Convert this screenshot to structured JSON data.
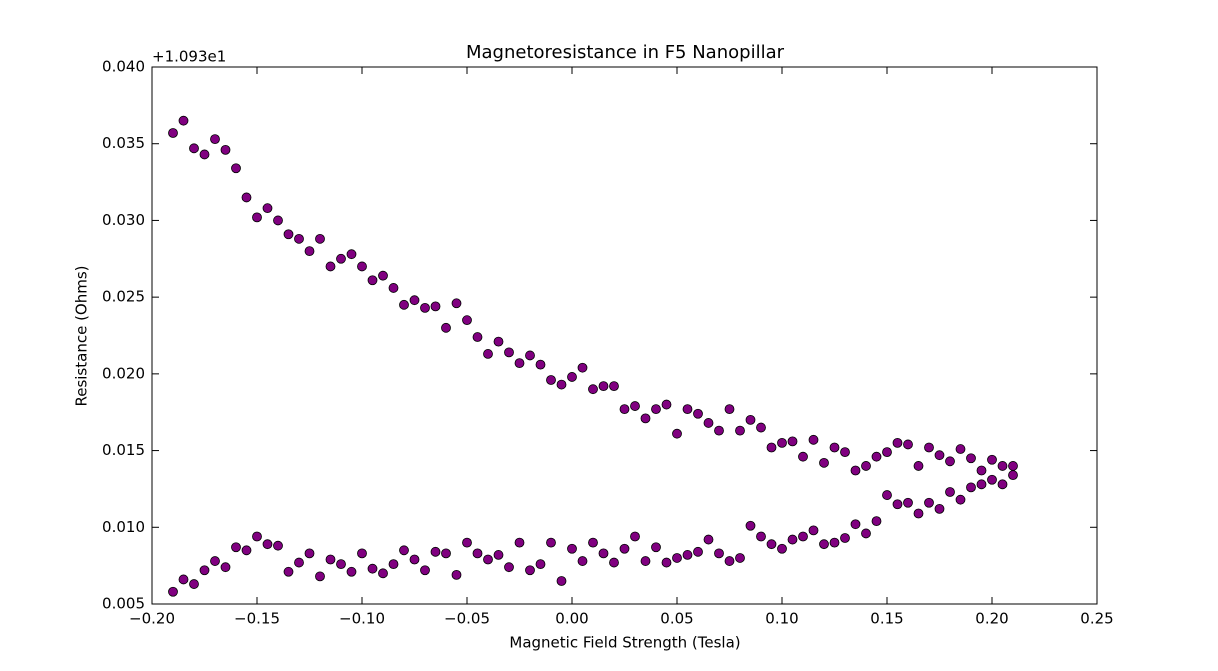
{
  "chart_data": {
    "type": "scatter",
    "title": "Magnetoresistance in F5 Nanopillar",
    "x_label": "Magnetic Field Strength (Tesla)",
    "y_label": "Resistance (Ohms)",
    "y_offset_label": "+1.093e1",
    "color": "#800080",
    "edge_color": "#000000",
    "xlim": [
      -0.2,
      0.25
    ],
    "ylim": [
      0.005,
      0.04
    ],
    "xticks": [
      {
        "value": -0.2,
        "label": "−0.20"
      },
      {
        "value": -0.15,
        "label": "−0.15"
      },
      {
        "value": -0.1,
        "label": "−0.10"
      },
      {
        "value": -0.05,
        "label": "−0.05"
      },
      {
        "value": 0,
        "label": "0.00"
      },
      {
        "value": 0.05,
        "label": "0.05"
      },
      {
        "value": 0.1,
        "label": "0.10"
      },
      {
        "value": 0.15,
        "label": "0.15"
      },
      {
        "value": 0.2,
        "label": "0.20"
      },
      {
        "value": 0.25,
        "label": "0.25"
      }
    ],
    "yticks": [
      {
        "value": 0.005,
        "label": "0.005"
      },
      {
        "value": 0.01,
        "label": "0.010"
      },
      {
        "value": 0.015,
        "label": "0.015"
      },
      {
        "value": 0.02,
        "label": "0.020"
      },
      {
        "value": 0.025,
        "label": "0.025"
      },
      {
        "value": 0.03,
        "label": "0.030"
      },
      {
        "value": 0.035,
        "label": "0.035"
      },
      {
        "value": 0.04,
        "label": "0.040"
      }
    ],
    "x": [
      -0.19,
      -0.185,
      -0.18,
      -0.175,
      -0.17,
      -0.165,
      -0.16,
      -0.155,
      -0.15,
      -0.145,
      -0.14,
      -0.135,
      -0.13,
      -0.125,
      -0.12,
      -0.115,
      -0.11,
      -0.105,
      -0.1,
      -0.095,
      -0.09,
      -0.085,
      -0.08,
      -0.075,
      -0.07,
      -0.065,
      -0.06,
      -0.055,
      -0.05,
      -0.045,
      -0.04,
      -0.035,
      -0.03,
      -0.025,
      -0.02,
      -0.015,
      -0.01,
      -0.005,
      0,
      0.005,
      0.01,
      0.015,
      0.02,
      0.025,
      0.03,
      0.035,
      0.04,
      0.045,
      0.05,
      0.055,
      0.06,
      0.065,
      0.07,
      0.075,
      0.08,
      0.085,
      0.09,
      0.095,
      0.1,
      0.105,
      0.11,
      0.115,
      0.12,
      0.125,
      0.13,
      0.135,
      0.14,
      0.145,
      0.15,
      0.155,
      0.16,
      0.165,
      0.17,
      0.175,
      0.18,
      0.185,
      0.19,
      0.195,
      0.2,
      0.205,
      0.21,
      -0.19,
      -0.185,
      -0.18,
      -0.175,
      -0.17,
      -0.165,
      -0.16,
      -0.155,
      -0.15,
      -0.145,
      -0.14,
      -0.135,
      -0.13,
      -0.125,
      -0.12,
      -0.115,
      -0.11,
      -0.105,
      -0.1,
      -0.095,
      -0.09,
      -0.085,
      -0.08,
      -0.075,
      -0.07,
      -0.065,
      -0.06,
      -0.055,
      -0.05,
      -0.045,
      -0.04,
      -0.035,
      -0.03,
      -0.025,
      -0.02,
      -0.015,
      -0.01,
      -0.005,
      0,
      0.005,
      0.01,
      0.015,
      0.02,
      0.025,
      0.03,
      0.035,
      0.04,
      0.045,
      0.05,
      0.055,
      0.06,
      0.065,
      0.07,
      0.075,
      0.08,
      0.085,
      0.09,
      0.095,
      0.1,
      0.105,
      0.11,
      0.115,
      0.12,
      0.125,
      0.13,
      0.135,
      0.14,
      0.145,
      0.15,
      0.155,
      0.16,
      0.165,
      0.17,
      0.175,
      0.18,
      0.185,
      0.19,
      0.195,
      0.2,
      0.205,
      0.21
    ],
    "y": [
      0.0357,
      0.0365,
      0.0347,
      0.0343,
      0.0353,
      0.0346,
      0.0334,
      0.0315,
      0.0302,
      0.0308,
      0.03,
      0.0291,
      0.0288,
      0.028,
      0.0288,
      0.027,
      0.0275,
      0.0278,
      0.027,
      0.0261,
      0.0264,
      0.0256,
      0.0245,
      0.0248,
      0.0243,
      0.0244,
      0.023,
      0.0246,
      0.0235,
      0.0224,
      0.0213,
      0.0221,
      0.0214,
      0.0207,
      0.0212,
      0.0206,
      0.0196,
      0.0193,
      0.0198,
      0.0204,
      0.019,
      0.0192,
      0.0192,
      0.0177,
      0.0179,
      0.0171,
      0.0177,
      0.018,
      0.0161,
      0.0177,
      0.0174,
      0.0168,
      0.0163,
      0.0177,
      0.0163,
      0.017,
      0.0165,
      0.0152,
      0.0155,
      0.0156,
      0.0146,
      0.0157,
      0.0142,
      0.0152,
      0.0149,
      0.0137,
      0.014,
      0.0146,
      0.0149,
      0.0155,
      0.0154,
      0.014,
      0.0152,
      0.0147,
      0.0143,
      0.0151,
      0.0145,
      0.0137,
      0.0144,
      0.014,
      0.014,
      0.0058,
      0.0066,
      0.0063,
      0.0072,
      0.0078,
      0.0074,
      0.0087,
      0.0085,
      0.0094,
      0.0089,
      0.0088,
      0.0071,
      0.0077,
      0.0083,
      0.0068,
      0.0079,
      0.0076,
      0.0071,
      0.0083,
      0.0073,
      0.007,
      0.0076,
      0.0085,
      0.0079,
      0.0072,
      0.0084,
      0.0083,
      0.0069,
      0.009,
      0.0083,
      0.0079,
      0.0082,
      0.0074,
      0.009,
      0.0072,
      0.0076,
      0.009,
      0.0065,
      0.0086,
      0.0078,
      0.009,
      0.0083,
      0.0077,
      0.0086,
      0.0094,
      0.0078,
      0.0087,
      0.0077,
      0.008,
      0.0082,
      0.0084,
      0.0092,
      0.0083,
      0.0078,
      0.008,
      0.0101,
      0.0094,
      0.0089,
      0.0086,
      0.0092,
      0.0094,
      0.0098,
      0.0089,
      0.009,
      0.0093,
      0.0102,
      0.0096,
      0.0104,
      0.0121,
      0.0115,
      0.0116,
      0.0109,
      0.0116,
      0.0112,
      0.0123,
      0.0118,
      0.0126,
      0.0128,
      0.0131,
      0.0128,
      0.0134
    ]
  }
}
